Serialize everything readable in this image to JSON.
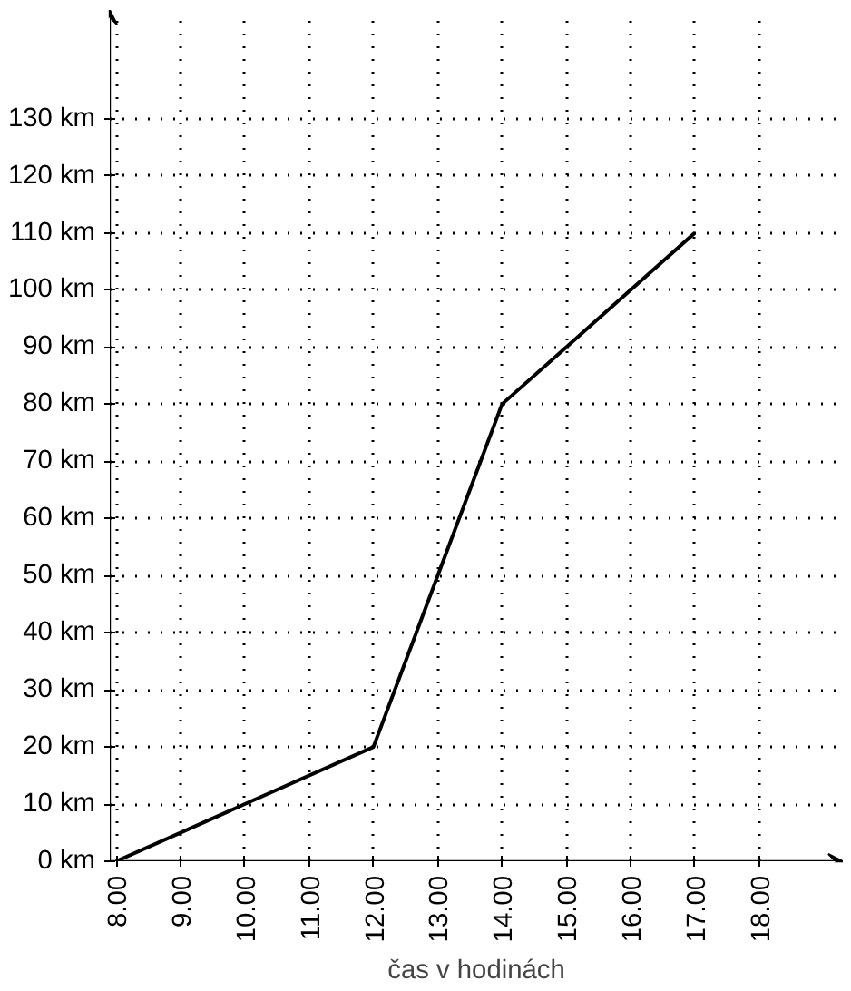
{
  "chart_data": {
    "type": "line",
    "xlabel": "čas v hodinách",
    "x": [
      8,
      10,
      12,
      13,
      14,
      15,
      16,
      17
    ],
    "values": [
      0,
      10,
      20,
      50,
      80,
      90,
      100,
      110
    ],
    "color": "#000000",
    "marker": "none",
    "line_style": "solid",
    "grid": true,
    "xlim": [
      7.9,
      19.3
    ],
    "ylim": [
      0,
      149
    ],
    "xticks": [
      {
        "value": 8,
        "label": "8.00"
      },
      {
        "value": 9,
        "label": "9.00"
      },
      {
        "value": 10,
        "label": "10.00"
      },
      {
        "value": 11,
        "label": "11.00"
      },
      {
        "value": 12,
        "label": "12.00"
      },
      {
        "value": 13,
        "label": "13.00"
      },
      {
        "value": 14,
        "label": "14.00"
      },
      {
        "value": 15,
        "label": "15.00"
      },
      {
        "value": 16,
        "label": "16.00"
      },
      {
        "value": 17,
        "label": "17.00"
      },
      {
        "value": 18,
        "label": "18.00"
      }
    ],
    "yticks": [
      {
        "value": 0,
        "label": "0 km"
      },
      {
        "value": 10,
        "label": "10 km"
      },
      {
        "value": 20,
        "label": "20 km"
      },
      {
        "value": 30,
        "label": "30 km"
      },
      {
        "value": 40,
        "label": "40 km"
      },
      {
        "value": 50,
        "label": "50 km"
      },
      {
        "value": 60,
        "label": "60 km"
      },
      {
        "value": 70,
        "label": "70 km"
      },
      {
        "value": 80,
        "label": "80 km"
      },
      {
        "value": 90,
        "label": "90 km"
      },
      {
        "value": 100,
        "label": "100 km"
      },
      {
        "value": 110,
        "label": "110 km"
      },
      {
        "value": 120,
        "label": "120 km"
      },
      {
        "value": 130,
        "label": "130 km"
      }
    ]
  }
}
